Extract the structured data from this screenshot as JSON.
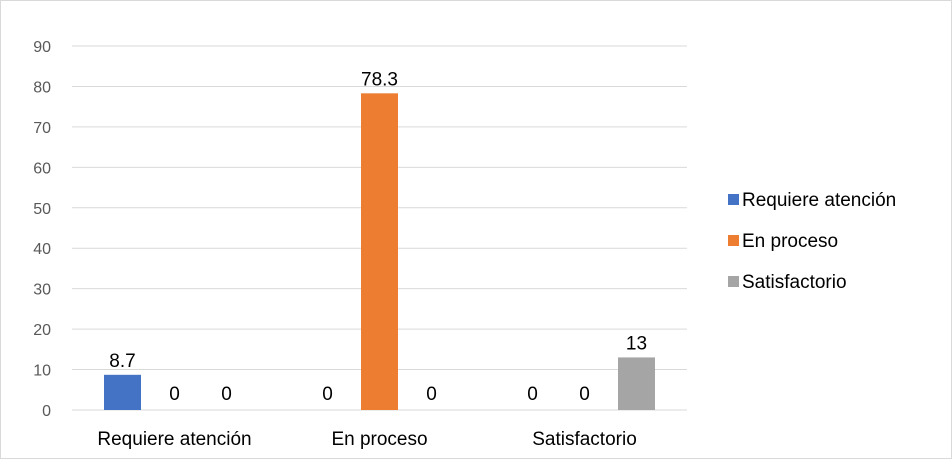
{
  "chart_data": {
    "type": "bar",
    "title": "",
    "xlabel": "",
    "ylabel": "",
    "categories": [
      "Requiere atención",
      "En proceso",
      "Satisfactorio"
    ],
    "series": [
      {
        "name": "Requiere atención",
        "color": "#4472C4",
        "values": [
          8.7,
          0,
          0
        ]
      },
      {
        "name": "En proceso",
        "color": "#ED7D31",
        "values": [
          0,
          78.3,
          0
        ]
      },
      {
        "name": "Satisfactorio",
        "color": "#A5A5A5",
        "values": [
          0,
          0,
          13
        ]
      }
    ],
    "ylim": [
      0,
      90
    ],
    "yticks": [
      0,
      10,
      20,
      30,
      40,
      50,
      60,
      70,
      80,
      90
    ],
    "grid": true,
    "legend_position": "right",
    "data_labels": true
  }
}
